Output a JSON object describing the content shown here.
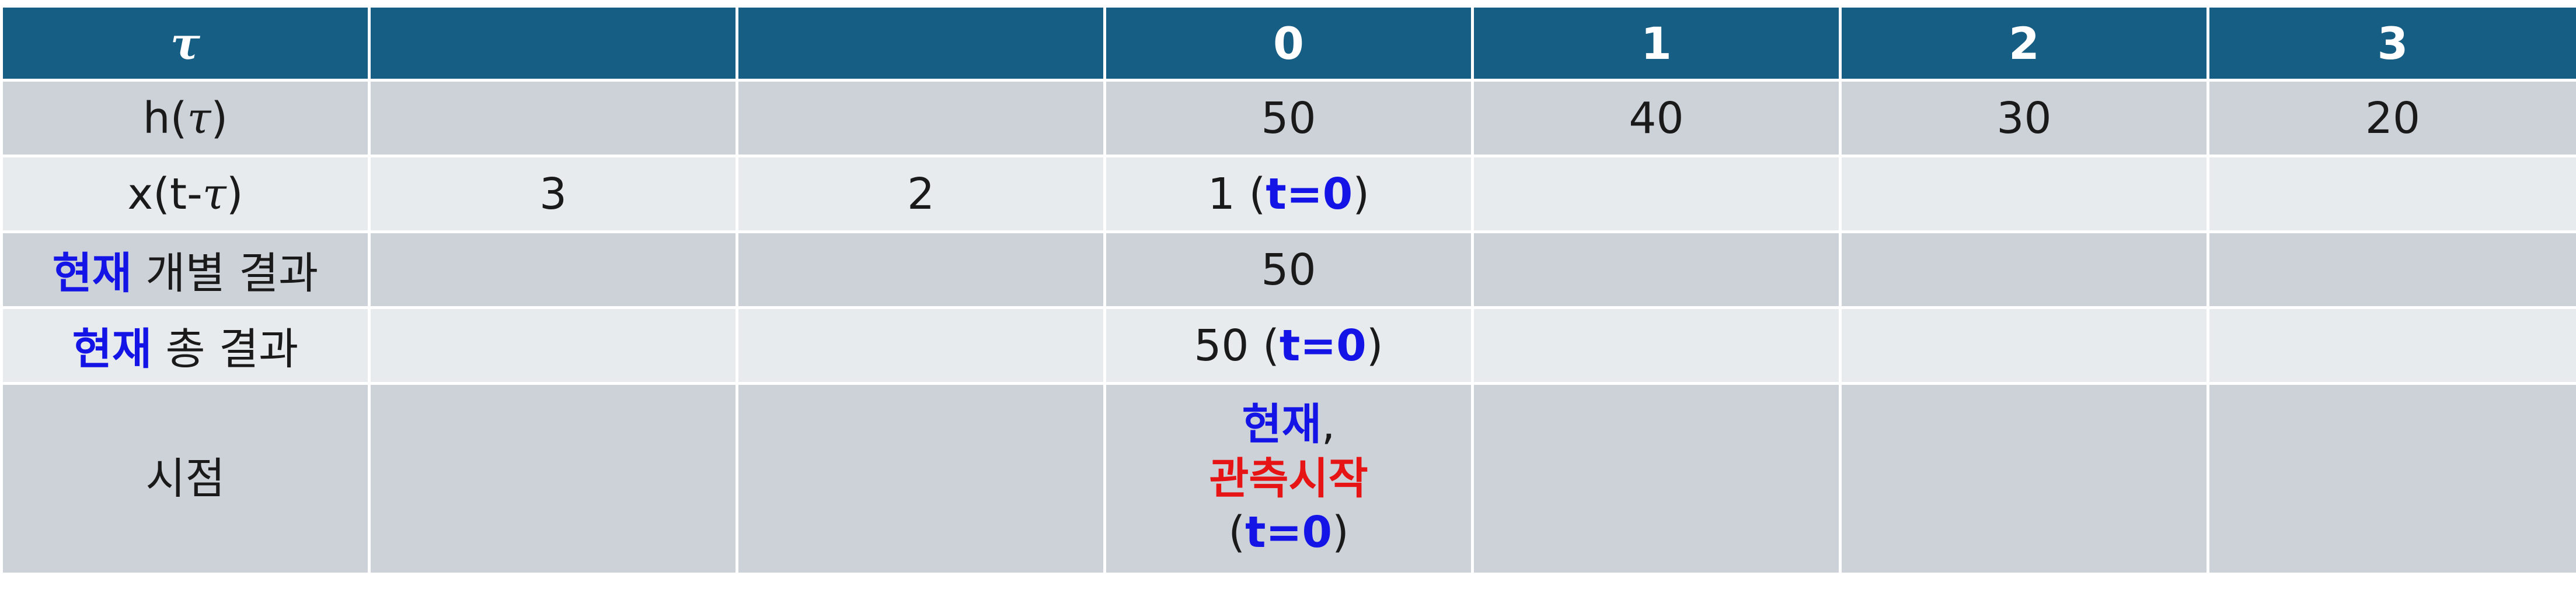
{
  "header": {
    "tau": "τ",
    "c3": "0",
    "c4": "1",
    "c5": "2",
    "c6": "3"
  },
  "rows": {
    "h": {
      "label_pre": "h(",
      "label_tau": "τ",
      "label_post": ")",
      "c3": "50",
      "c4": "40",
      "c5": "30",
      "c6": "20"
    },
    "x": {
      "label_pre": "x(t-",
      "label_tau": "τ",
      "label_post": ")",
      "c1": "3",
      "c2": "2",
      "c3_pre": "1 (",
      "c3_bold": "t=0",
      "c3_post": ")"
    },
    "individual": {
      "label_bold": "현재",
      "label_rest": " 개별 결과",
      "c3": "50"
    },
    "total": {
      "label_bold": "현재",
      "label_rest": " 총 결과",
      "c3_pre": "50 (",
      "c3_bold": "t=0",
      "c3_post": ")"
    },
    "time": {
      "label": "시점",
      "c3_line1_bold": "현재",
      "c3_line1_rest": ",",
      "c3_line2": "관측시작",
      "c3_line3_pre": "(",
      "c3_line3_bold": "t=0",
      "c3_line3_post": ")"
    }
  },
  "colors": {
    "header_bg": "#175e84",
    "row_dark": "#cdd1d8",
    "row_light": "#e8ebee",
    "highlight_blue": "#1414e6",
    "highlight_red": "#e61414"
  }
}
